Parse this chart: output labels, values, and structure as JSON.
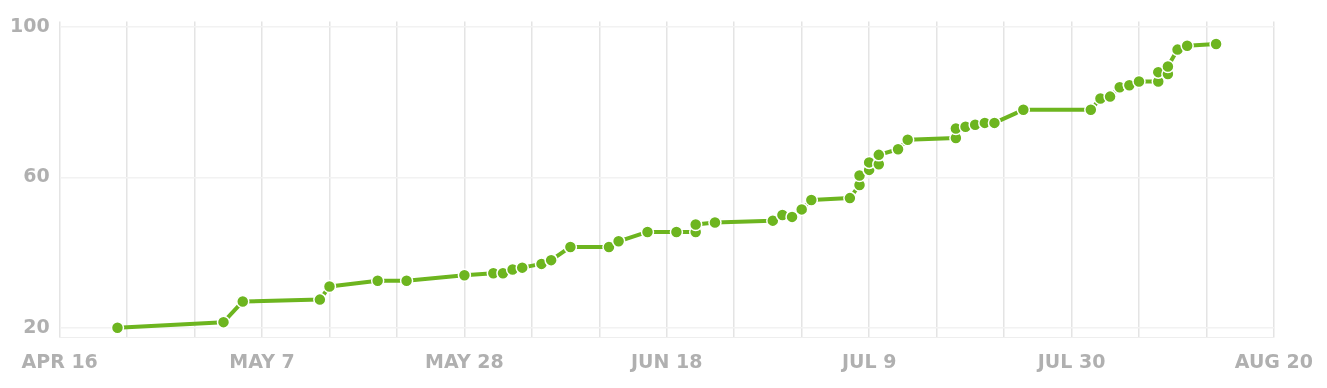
{
  "chart_data": {
    "type": "line",
    "marker": "circle",
    "grid": true,
    "legend": false,
    "xlim": [
      "--04-16",
      "--08-20"
    ],
    "xticks": [
      {
        "value": "--04-16",
        "label": "APR 16"
      },
      {
        "value": "--04-23",
        "label": null
      },
      {
        "value": "--04-30",
        "label": null
      },
      {
        "value": "--05-07",
        "label": "MAY 7"
      },
      {
        "value": "--05-14",
        "label": null
      },
      {
        "value": "--05-21",
        "label": null
      },
      {
        "value": "--05-28",
        "label": "MAY 28"
      },
      {
        "value": "--06-04",
        "label": null
      },
      {
        "value": "--06-11",
        "label": null
      },
      {
        "value": "--06-18",
        "label": "JUN 18"
      },
      {
        "value": "--06-25",
        "label": null
      },
      {
        "value": "--07-02",
        "label": null
      },
      {
        "value": "--07-09",
        "label": "JUL 9"
      },
      {
        "value": "--07-16",
        "label": null
      },
      {
        "value": "--07-23",
        "label": null
      },
      {
        "value": "--07-30",
        "label": "JUL 30"
      },
      {
        "value": "--08-06",
        "label": null
      },
      {
        "value": "--08-13",
        "label": null
      },
      {
        "value": "--08-20",
        "label": "AUG 20"
      }
    ],
    "ylim": [
      17.5,
      101.5
    ],
    "yticks": [
      20,
      60,
      100
    ],
    "x": [
      "--04-22",
      "--05-03",
      "--05-05",
      "--05-13",
      "--05-14",
      "--05-19",
      "--05-22",
      "--05-28",
      "--05-31",
      "--06-01",
      "--06-02",
      "--06-03",
      "--06-05",
      "--06-06",
      "--06-08",
      "--06-12",
      "--06-13",
      "--06-16",
      "--06-19",
      "--06-21",
      "--06-21",
      "--06-23",
      "--06-29",
      "--06-30",
      "--07-01",
      "--07-02",
      "--07-03",
      "--07-07",
      "--07-08",
      "--07-08",
      "--07-09",
      "--07-09",
      "--07-10",
      "--07-10",
      "--07-12",
      "--07-13",
      "--07-18",
      "--07-18",
      "--07-19",
      "--07-20",
      "--07-21",
      "--07-22",
      "--07-25",
      "--08-01",
      "--08-02",
      "--08-03",
      "--08-04",
      "--08-05",
      "--08-05",
      "--08-06",
      "--08-08",
      "--08-08",
      "--08-09",
      "--08-09",
      "--08-10",
      "--08-11",
      "--08-14"
    ],
    "series": [
      {
        "color": "#6db51f",
        "values": [
          20,
          21.5,
          27,
          27.5,
          31,
          32.5,
          32.5,
          34,
          34.5,
          34.5,
          35.5,
          36,
          37,
          38,
          41.5,
          41.5,
          43,
          45.5,
          45.5,
          45.5,
          47.5,
          48,
          48.5,
          50,
          49.5,
          51.5,
          54,
          54.5,
          58,
          60.5,
          62,
          64,
          63.5,
          66,
          67.5,
          70,
          70.5,
          73,
          73.5,
          74,
          74.5,
          74.5,
          78,
          78,
          81,
          81.5,
          84,
          84.5,
          84.5,
          85.5,
          85.5,
          88,
          87.5,
          89.5,
          94,
          95,
          95.5
        ]
      }
    ]
  }
}
